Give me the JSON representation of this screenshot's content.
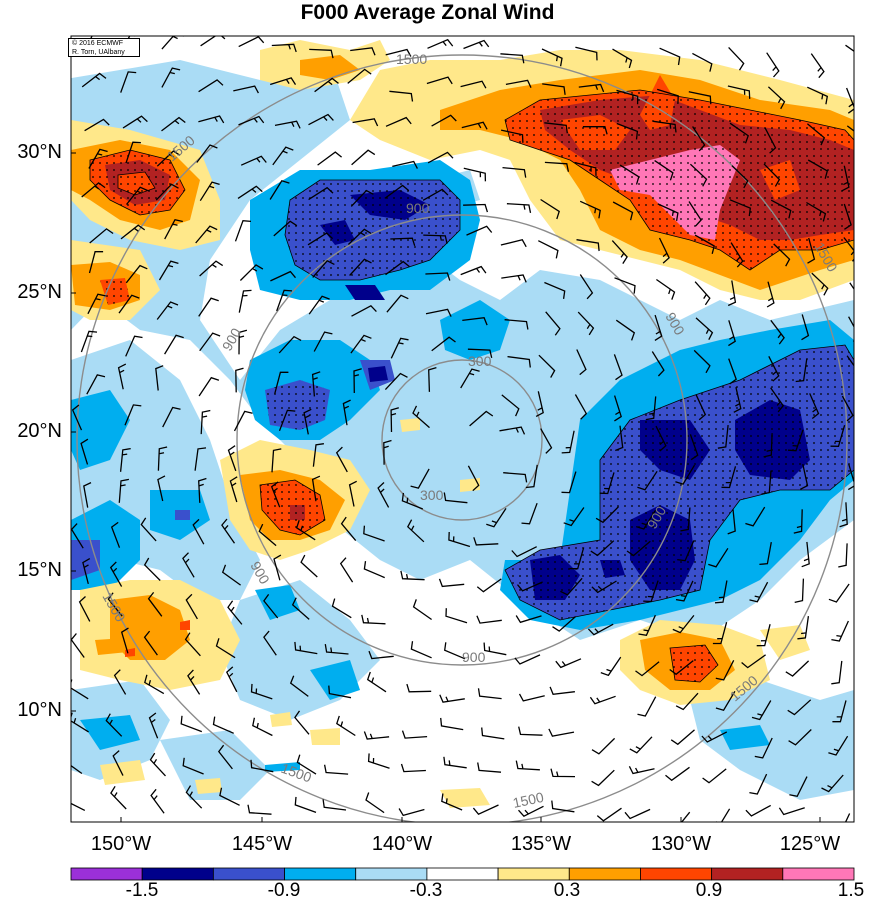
{
  "title": "F000 Average Zonal Wind",
  "credit": {
    "line1": "© 2016 ECMWF",
    "line2": "R. Torn, UAlbany"
  },
  "lat_labels": [
    "30°N",
    "25°N",
    "20°N",
    "15°N",
    "10°N"
  ],
  "lon_labels": [
    "150°W",
    "145°W",
    "140°W",
    "135°W",
    "130°W",
    "125°W"
  ],
  "contour_labels": {
    "ring_300": "300",
    "ring_900": "900",
    "ring_1500": "1500"
  },
  "colorbar": {
    "labels": [
      "-1.5",
      "-0.9",
      "-0.3",
      "0.3",
      "0.9",
      "1.5"
    ],
    "colors": [
      "#9b30d9",
      "#00008b",
      "#3a50cc",
      "#00aeef",
      "#aadcf5",
      "#ffffff",
      "#ffe88a",
      "#ff9f00",
      "#ff4500",
      "#b22222",
      "#ff77b7"
    ]
  },
  "palette": {
    "light_blue": "#aadcf5",
    "cyan": "#00aeef",
    "mid_blue": "#3a50cc",
    "dark_blue": "#00008b",
    "yellow": "#ffe88a",
    "orange": "#ff9f00",
    "red": "#ff4500",
    "dark_red": "#b22222",
    "pink": "#ff77b7",
    "ring_gray": "#8c8c8c"
  }
}
